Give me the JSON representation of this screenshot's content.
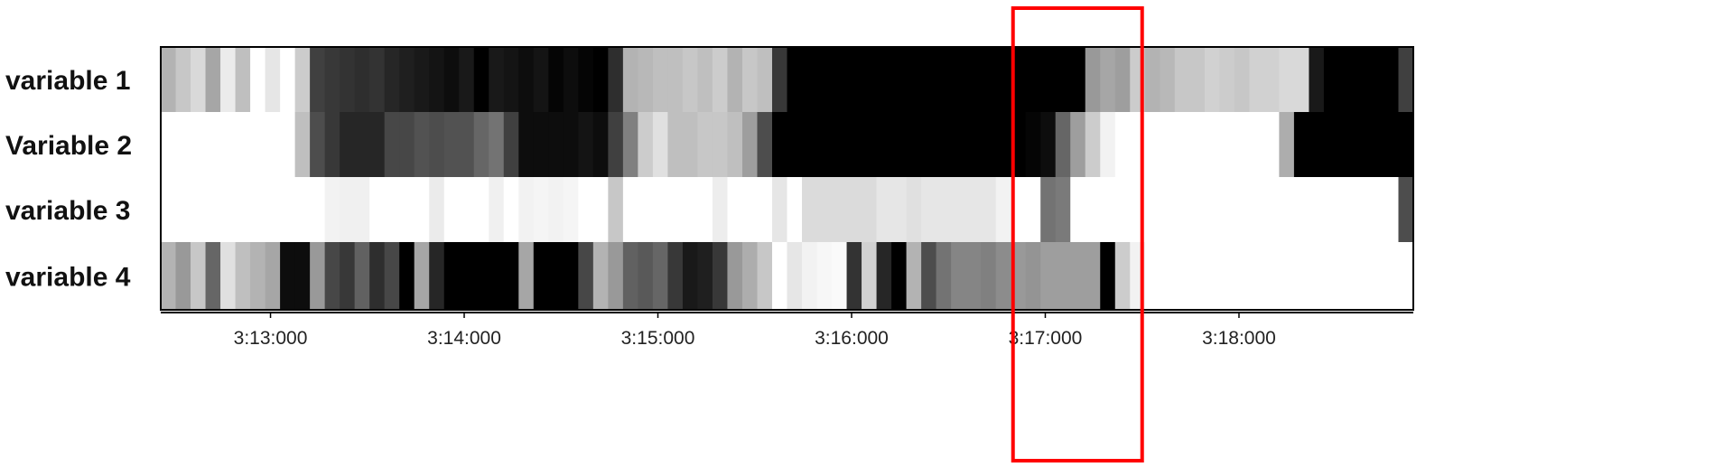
{
  "chart_data": {
    "type": "heatmap",
    "title": "",
    "xlabel": "",
    "ylabel": "",
    "colormap": "grayscale: 0 = white, 1 = black",
    "legend": "none",
    "grid": false,
    "time_range": [
      "3:12:26",
      "3:18:54"
    ],
    "ticks": [
      "3:13:000",
      "3:14:000",
      "3:15:000",
      "3:16:000",
      "3:17:000",
      "3:18:000"
    ],
    "tick_times": [
      "3:13:00",
      "3:14:00",
      "3:15:00",
      "3:16:00",
      "3:17:00",
      "3:18:00"
    ],
    "highlight": {
      "label": "red rectangle",
      "color": "#ff0000",
      "time_range": [
        "3:16:50",
        "3:17:30"
      ]
    },
    "rows": [
      {
        "label": "variable 1",
        "values": [
          0.3,
          0.22,
          0.15,
          0.35,
          0.08,
          0.25,
          0.0,
          0.1,
          0.0,
          0.2,
          0.75,
          0.78,
          0.8,
          0.82,
          0.8,
          0.85,
          0.88,
          0.9,
          0.92,
          0.95,
          0.9,
          1.0,
          0.9,
          0.92,
          0.95,
          0.92,
          0.98,
          0.95,
          0.98,
          1.0,
          0.82,
          0.3,
          0.28,
          0.25,
          0.25,
          0.22,
          0.25,
          0.2,
          0.3,
          0.22,
          0.25,
          0.78,
          1.0,
          1.0,
          1.0,
          1.0,
          1.0,
          1.0,
          1.0,
          1.0,
          1.0,
          1.0,
          1.0,
          1.0,
          1.0,
          1.0,
          1.0,
          1.0,
          1.0,
          1.0,
          1.0,
          1.0,
          0.4,
          0.35,
          0.38,
          0.2,
          0.3,
          0.28,
          0.22,
          0.22,
          0.18,
          0.2,
          0.22,
          0.18,
          0.18,
          0.15,
          0.15,
          0.9,
          1.0,
          1.0,
          1.0,
          1.0,
          1.0,
          0.75
        ]
      },
      {
        "label": "Variable 2",
        "values": [
          0.0,
          0.0,
          0.0,
          0.0,
          0.0,
          0.0,
          0.0,
          0.0,
          0.0,
          0.25,
          0.7,
          0.78,
          0.85,
          0.85,
          0.85,
          0.72,
          0.72,
          0.68,
          0.7,
          0.68,
          0.68,
          0.6,
          0.55,
          0.75,
          0.95,
          0.95,
          0.95,
          0.95,
          0.92,
          0.95,
          0.75,
          0.5,
          0.2,
          0.12,
          0.25,
          0.25,
          0.22,
          0.22,
          0.25,
          0.38,
          0.7,
          1.0,
          1.0,
          1.0,
          1.0,
          1.0,
          1.0,
          1.0,
          1.0,
          1.0,
          1.0,
          1.0,
          1.0,
          1.0,
          1.0,
          1.0,
          1.0,
          1.0,
          0.98,
          0.95,
          0.6,
          0.38,
          0.2,
          0.05,
          0.0,
          0.0,
          0.0,
          0.0,
          0.0,
          0.0,
          0.0,
          0.0,
          0.0,
          0.0,
          0.0,
          0.32,
          1.0,
          1.0,
          1.0,
          1.0,
          1.0,
          1.0,
          1.0,
          1.0
        ]
      },
      {
        "label": "variable 3",
        "values": [
          0.0,
          0.0,
          0.0,
          0.0,
          0.0,
          0.0,
          0.0,
          0.0,
          0.0,
          0.0,
          0.0,
          0.05,
          0.06,
          0.06,
          0.0,
          0.0,
          0.0,
          0.0,
          0.08,
          0.0,
          0.0,
          0.0,
          0.06,
          0.0,
          0.05,
          0.04,
          0.05,
          0.04,
          0.0,
          0.0,
          0.22,
          0.0,
          0.0,
          0.0,
          0.0,
          0.0,
          0.0,
          0.07,
          0.0,
          0.0,
          0.0,
          0.1,
          0.0,
          0.14,
          0.14,
          0.14,
          0.14,
          0.14,
          0.1,
          0.1,
          0.12,
          0.1,
          0.1,
          0.1,
          0.1,
          0.1,
          0.05,
          0.0,
          0.0,
          0.55,
          0.52,
          0.0,
          0.0,
          0.0,
          0.0,
          0.0,
          0.0,
          0.0,
          0.0,
          0.0,
          0.0,
          0.0,
          0.0,
          0.0,
          0.0,
          0.0,
          0.0,
          0.0,
          0.0,
          0.0,
          0.0,
          0.0,
          0.0,
          0.7
        ]
      },
      {
        "label": "variable 4",
        "values": [
          0.3,
          0.4,
          0.22,
          0.6,
          0.12,
          0.25,
          0.3,
          0.35,
          0.95,
          0.95,
          0.4,
          0.72,
          0.78,
          0.62,
          0.82,
          0.72,
          1.0,
          0.35,
          0.85,
          1.0,
          1.0,
          1.0,
          1.0,
          1.0,
          0.35,
          1.0,
          1.0,
          1.0,
          0.72,
          0.3,
          0.4,
          0.62,
          0.65,
          0.6,
          0.78,
          0.9,
          0.88,
          0.78,
          0.4,
          0.32,
          0.22,
          0.0,
          0.1,
          0.05,
          0.03,
          0.02,
          0.8,
          0.18,
          0.85,
          1.0,
          0.3,
          0.7,
          0.55,
          0.48,
          0.48,
          0.5,
          0.45,
          0.4,
          0.42,
          0.38,
          0.38,
          0.38,
          0.38,
          1.0,
          0.2,
          0.05,
          0.0,
          0.0,
          0.0,
          0.0,
          0.0,
          0.0,
          0.0,
          0.0,
          0.0,
          0.0,
          0.0,
          0.0,
          0.0,
          0.0,
          0.0,
          0.0,
          0.0,
          0.0
        ]
      }
    ]
  }
}
